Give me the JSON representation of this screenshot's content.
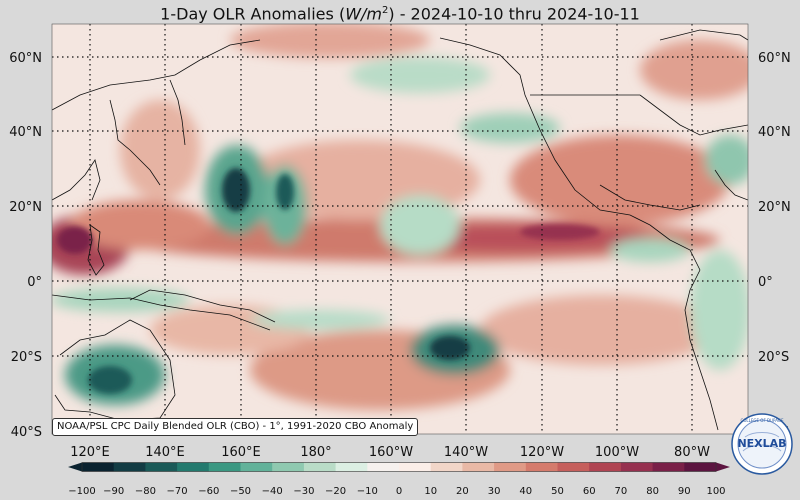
{
  "title": {
    "prefix": "1-Day OLR Anomalies (",
    "unit_base": "W/m",
    "unit_exp": "2",
    "suffix": ") - 2024-10-10 thru 2024-10-11"
  },
  "map": {
    "lat_labels": [
      "60°N",
      "40°N",
      "20°N",
      "0°",
      "20°S",
      "40°S"
    ],
    "lon_labels": [
      "120°E",
      "140°E",
      "160°E",
      "180°",
      "160°W",
      "140°W",
      "120°W",
      "100°W",
      "80°W"
    ],
    "credit": "NOAA/PSL CPC Daily Blended OLR (CBO) - 1°, 1991-2020 CBO Anomaly"
  },
  "colorbar": {
    "ticks": [
      "−100",
      "−90",
      "−80",
      "−70",
      "−60",
      "−50",
      "−40",
      "−30",
      "−20",
      "−10",
      "0",
      "10",
      "20",
      "30",
      "40",
      "50",
      "60",
      "70",
      "80",
      "90",
      "100"
    ],
    "colors": [
      "#0a2330",
      "#123c44",
      "#1a5a58",
      "#237a6e",
      "#3a9882",
      "#62b29a",
      "#8fc9b0",
      "#b9dcc7",
      "#dcefe3",
      "#f6f1ee",
      "#fbeee8",
      "#f2d6c8",
      "#e9b9a6",
      "#e09a86",
      "#d57b6c",
      "#c65f5c",
      "#b04452",
      "#96304f",
      "#7a2048",
      "#5c1440"
    ]
  },
  "logo": {
    "name": "NEXLAB",
    "arc_text": "COLLEGE OF DUPAGE"
  }
}
